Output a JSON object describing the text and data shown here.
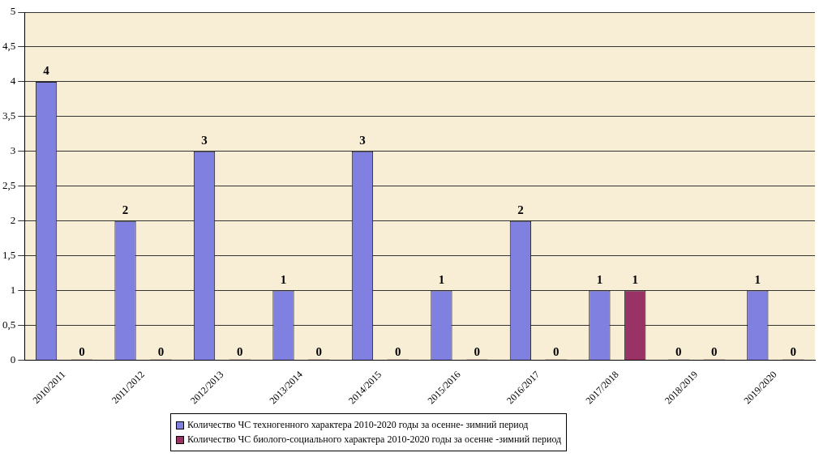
{
  "chart_data": {
    "type": "bar",
    "categories": [
      "2010/2011",
      "2011/2012",
      "2012/2013",
      "2013/2014",
      "2014/2015",
      "2015/2016",
      "2016/2017",
      "2017/2018",
      "2018/2019",
      "2019/2020"
    ],
    "series": [
      {
        "name": "Количество  ЧС техногенного характера 2010-2020 годы за осенне- зимний период",
        "color": "#8080e0",
        "values": [
          4,
          2,
          3,
          1,
          3,
          1,
          2,
          1,
          0,
          1
        ]
      },
      {
        "name": "Количество ЧС биолого-социального характера  2010-2020 годы за осенне -зимний период",
        "color": "#993366",
        "values": [
          0,
          0,
          0,
          0,
          0,
          0,
          0,
          1,
          0,
          0
        ]
      }
    ],
    "ylim": [
      0,
      5
    ],
    "yticks": [
      0,
      {
        "value": 0.5,
        "label": "0,5"
      },
      1,
      {
        "value": 1.5,
        "label": "1,5"
      },
      2,
      {
        "value": 2.5,
        "label": "2,5"
      },
      3,
      {
        "value": 3.5,
        "label": "3,5"
      },
      4,
      {
        "value": 4.5,
        "label": "4,5"
      },
      5
    ],
    "grid": "y",
    "legend": "bottom",
    "data_labels": true
  }
}
